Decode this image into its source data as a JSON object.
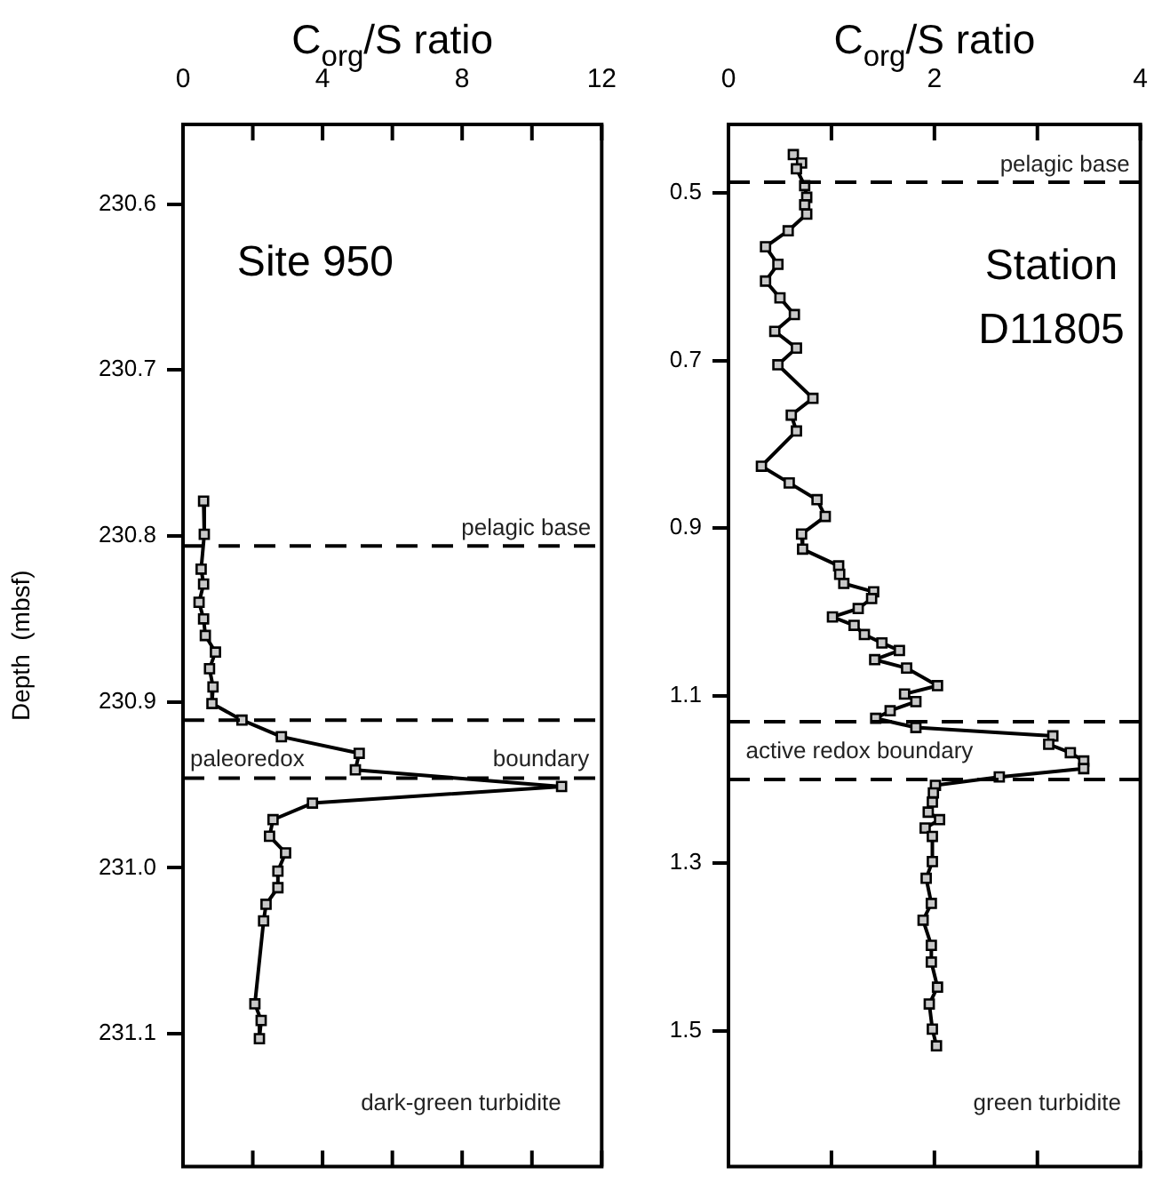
{
  "chart_data": [
    {
      "type": "line",
      "xlabel": "C$_{org}$/S ratio",
      "ylabel": "Depth  (mbsf)",
      "xlim": [
        0,
        12
      ],
      "xticks": [
        0,
        {
          "value": 2,
          "label": null
        },
        4,
        {
          "value": 6,
          "label": null
        },
        8,
        {
          "value": 10,
          "label": null
        },
        12
      ],
      "ylim": [
        231.18,
        230.552
      ],
      "yticks": [
        230.6,
        230.7,
        230.8,
        230.9,
        {
          "value": 231.0,
          "label": "231.0"
        },
        231.1
      ],
      "grid": false,
      "legend": false,
      "marker": "square",
      "line_style": "solid",
      "series": [
        {
          "color": "#000000",
          "x": [
            0.59,
            0.61,
            0.52,
            0.59,
            0.46,
            0.59,
            0.64,
            0.93,
            0.76,
            0.86,
            0.83,
            1.69,
            2.82,
            5.05,
            4.94,
            10.85,
            3.71,
            2.58,
            2.48,
            2.94,
            2.72,
            2.72,
            2.38,
            2.31,
            2.06,
            2.24,
            2.19
          ],
          "values": [
            230.779,
            230.799,
            230.82,
            230.829,
            230.84,
            230.85,
            230.86,
            230.87,
            230.88,
            230.891,
            230.901,
            230.911,
            230.921,
            230.931,
            230.941,
            230.951,
            230.961,
            230.971,
            230.981,
            230.991,
            231.002,
            231.012,
            231.022,
            231.032,
            231.082,
            231.092,
            231.103
          ]
        }
      ],
      "ref_lines": [
        {
          "axis": "y",
          "value": 230.806,
          "label": "pelagic base",
          "color": "#000000",
          "line_style": "dashed"
        },
        {
          "axis": "y",
          "value": 230.911,
          "label": null,
          "color": "#000000",
          "line_style": "dashed"
        },
        {
          "axis": "y",
          "value": 230.946,
          "label": null,
          "color": "#000000",
          "line_style": "dashed"
        }
      ],
      "annotations": [
        "Site 950",
        "paleoredox",
        "boundary",
        "dark-green turbidite"
      ]
    },
    {
      "type": "line",
      "xlabel": "C$_{org}$/S ratio",
      "xlim": [
        0,
        4
      ],
      "xticks": [
        0,
        {
          "value": 1,
          "label": null
        },
        2,
        {
          "value": 3,
          "label": null
        },
        4
      ],
      "ylim": [
        1.662,
        0.418
      ],
      "yticks": [
        0.5,
        0.7,
        0.9,
        1.1,
        1.3,
        1.5
      ],
      "grid": false,
      "legend": false,
      "marker": "square",
      "line_style": "solid",
      "series": [
        {
          "color": "#000000",
          "x": [
            0.63,
            0.71,
            0.66,
            0.74,
            0.76,
            0.74,
            0.76,
            0.58,
            0.36,
            0.48,
            0.36,
            0.5,
            0.64,
            0.45,
            0.66,
            0.48,
            0.82,
            0.61,
            0.66,
            0.32,
            0.59,
            0.86,
            0.94,
            0.71,
            0.72,
            1.07,
            1.08,
            1.12,
            1.41,
            1.39,
            1.26,
            1.01,
            1.22,
            1.32,
            1.49,
            1.66,
            1.42,
            1.73,
            2.03,
            1.71,
            1.82,
            1.57,
            1.43,
            1.82,
            3.15,
            3.11,
            3.32,
            3.45,
            3.45,
            2.63,
            2.01,
            1.99,
            1.98,
            1.94,
            2.05,
            1.91,
            1.98,
            1.98,
            1.92,
            1.97,
            1.89,
            1.97,
            1.97,
            2.03,
            1.95,
            1.98,
            2.02
          ],
          "values": [
            0.454,
            0.464,
            0.471,
            0.491,
            0.505,
            0.514,
            0.525,
            0.545,
            0.564,
            0.585,
            0.605,
            0.625,
            0.645,
            0.665,
            0.685,
            0.705,
            0.745,
            0.765,
            0.784,
            0.826,
            0.846,
            0.866,
            0.886,
            0.907,
            0.925,
            0.945,
            0.955,
            0.966,
            0.976,
            0.984,
            0.996,
            1.006,
            1.016,
            1.027,
            1.037,
            1.046,
            1.057,
            1.067,
            1.088,
            1.098,
            1.107,
            1.118,
            1.127,
            1.138,
            1.148,
            1.158,
            1.168,
            1.178,
            1.187,
            1.197,
            1.207,
            1.216,
            1.227,
            1.239,
            1.248,
            1.258,
            1.268,
            1.298,
            1.318,
            1.348,
            1.368,
            1.398,
            1.418,
            1.448,
            1.468,
            1.498,
            1.518
          ]
        }
      ],
      "ref_lines": [
        {
          "axis": "y",
          "value": 0.487,
          "label": "pelagic base",
          "color": "#000000",
          "line_style": "dashed"
        },
        {
          "axis": "y",
          "value": 1.131,
          "label": null,
          "color": "#000000",
          "line_style": "dashed"
        },
        {
          "axis": "y",
          "value": 1.2,
          "label": null,
          "color": "#000000",
          "line_style": "dashed"
        }
      ],
      "annotations": [
        "Station D11805",
        "active redox boundary",
        "green turbidite"
      ]
    }
  ]
}
